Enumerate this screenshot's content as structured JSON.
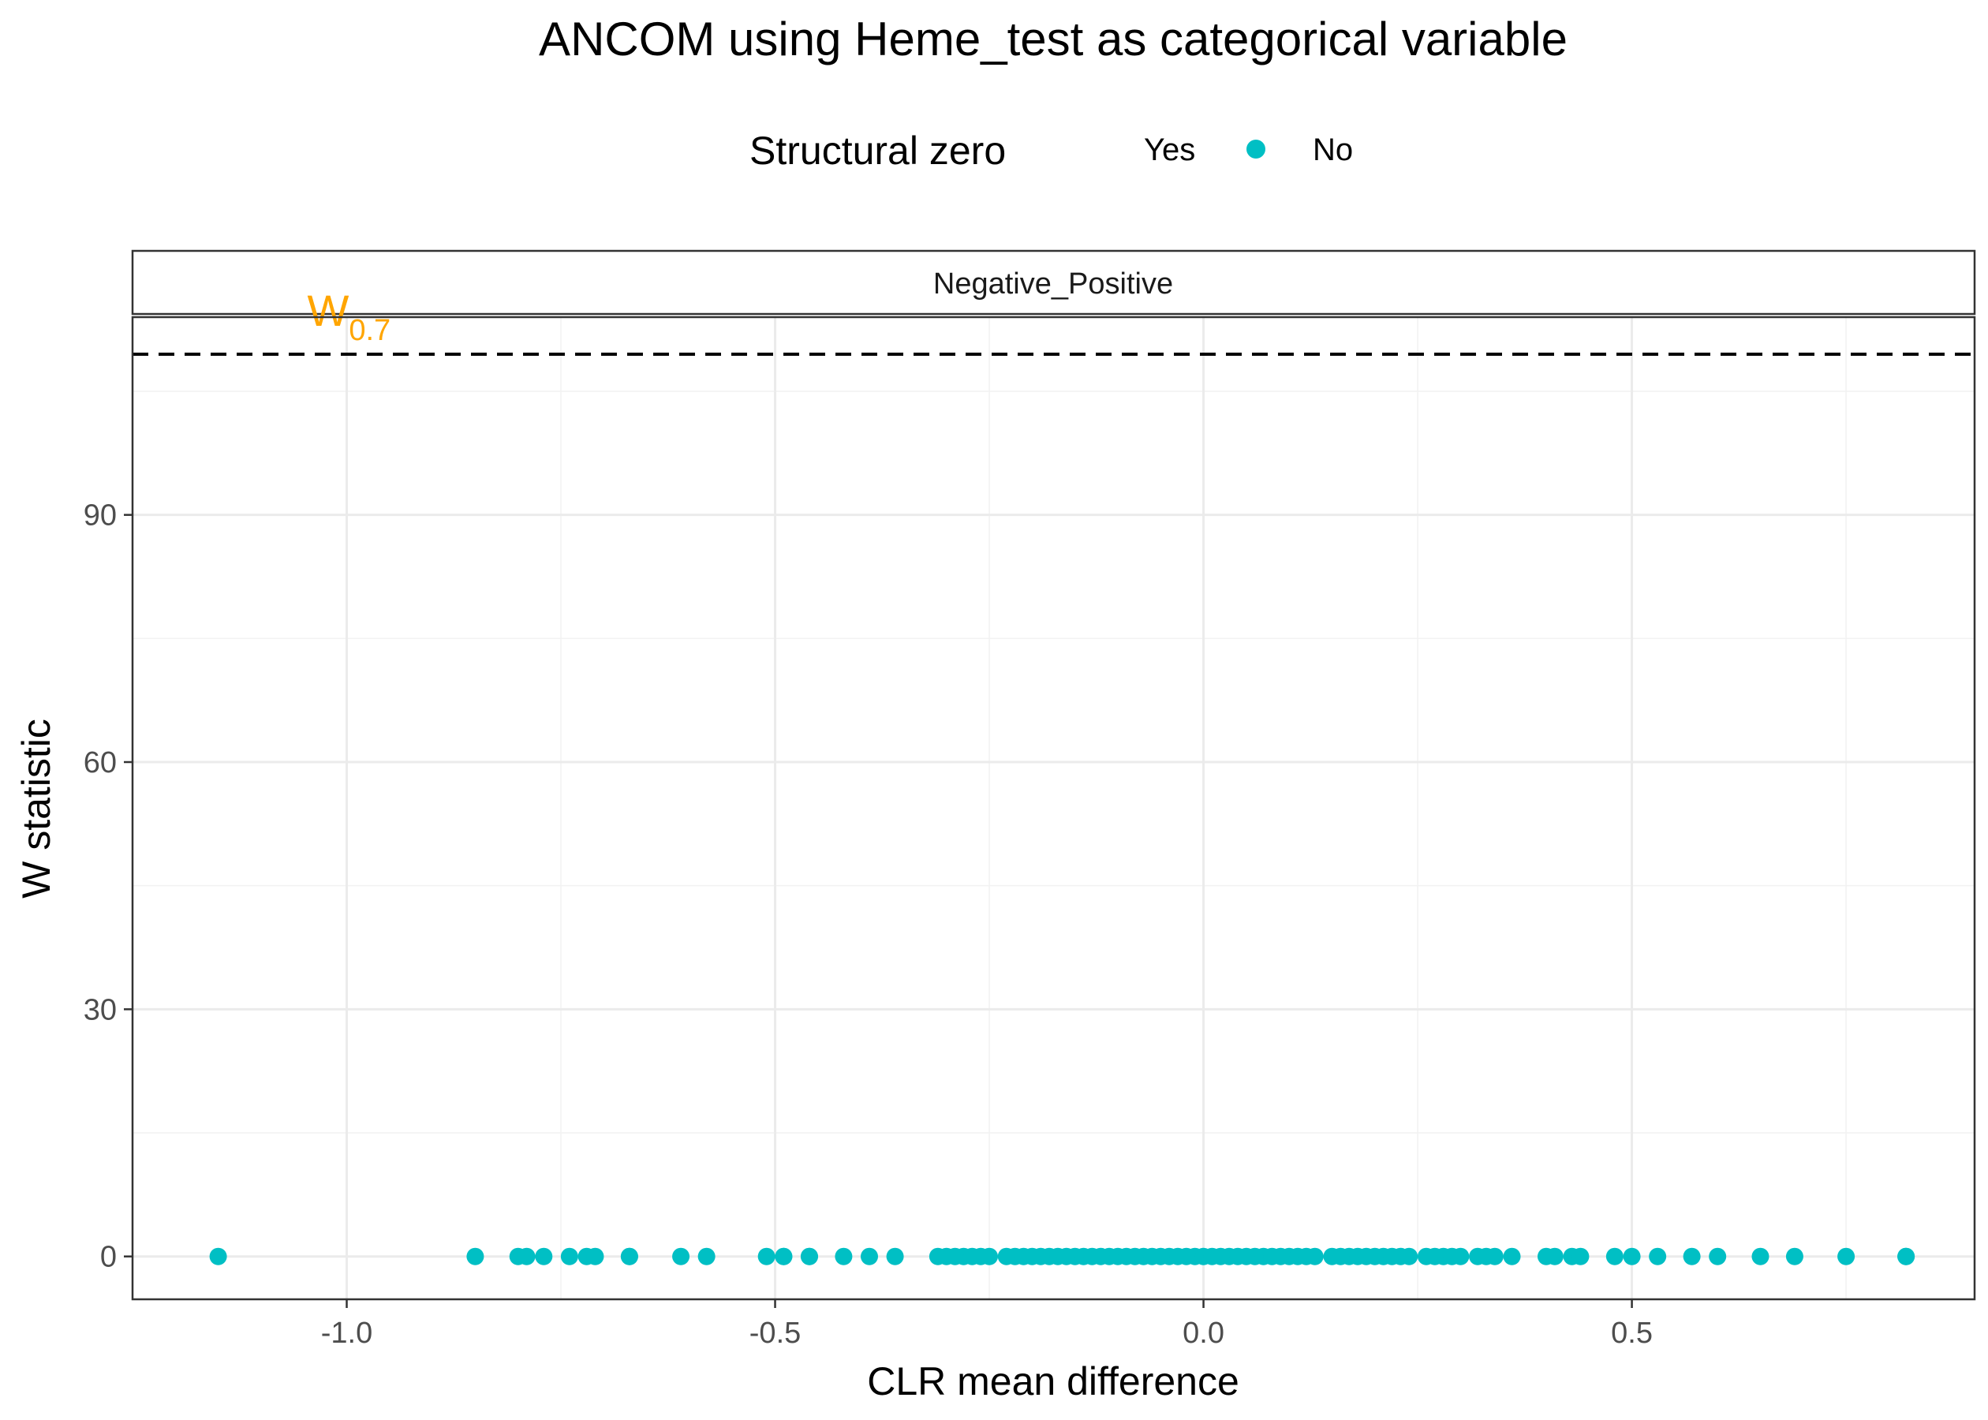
{
  "chart_data": {
    "type": "scatter",
    "title": "ANCOM using Heme_test as categorical variable",
    "xlabel": "CLR mean difference",
    "ylabel": "W statistic",
    "facet_label": "Negative_Positive",
    "legend": {
      "title": "Structural zero",
      "placement": "top",
      "entries": [
        {
          "label": "Yes",
          "color": ""
        },
        {
          "label": "No",
          "color": "#00BFC4"
        }
      ]
    },
    "xlim": [
      -1.25,
      0.9
    ],
    "ylim": [
      -5.2,
      114
    ],
    "x_ticks": [
      {
        "value": -1.0,
        "label": "-1.0"
      },
      {
        "value": -0.5,
        "label": "-0.5"
      },
      {
        "value": 0.0,
        "label": "0.0"
      },
      {
        "value": 0.5,
        "label": "0.5"
      }
    ],
    "y_ticks": [
      {
        "value": 0,
        "label": "0"
      },
      {
        "value": 30,
        "label": "30"
      },
      {
        "value": 60,
        "label": "60"
      },
      {
        "value": 90,
        "label": "90"
      }
    ],
    "grid": true,
    "threshold": {
      "value": 109.5,
      "label_main": "W",
      "label_sub": "0.7",
      "label_x": -1.0,
      "color": "#FFA500",
      "style": "dashed"
    },
    "point_color": "#00BFC4",
    "series": [
      {
        "name": "No",
        "x": [
          -1.15,
          -0.85,
          -0.8,
          -0.79,
          -0.77,
          -0.74,
          -0.72,
          -0.71,
          -0.67,
          -0.67,
          -0.61,
          -0.58,
          -0.51,
          -0.49,
          -0.49,
          -0.46,
          -0.46,
          -0.42,
          -0.39,
          -0.36,
          -0.31,
          -0.3,
          -0.29,
          -0.28,
          -0.27,
          -0.26,
          -0.25,
          -0.23,
          -0.22,
          -0.21,
          -0.2,
          -0.19,
          -0.18,
          -0.17,
          -0.16,
          -0.15,
          -0.14,
          -0.13,
          -0.12,
          -0.11,
          -0.1,
          -0.09,
          -0.08,
          -0.07,
          -0.06,
          -0.05,
          -0.04,
          -0.03,
          -0.02,
          -0.01,
          0.0,
          0.01,
          0.02,
          0.03,
          0.04,
          0.05,
          0.06,
          0.07,
          0.08,
          0.09,
          0.1,
          0.11,
          0.12,
          0.13,
          0.15,
          0.16,
          0.17,
          0.18,
          0.19,
          0.2,
          0.21,
          0.22,
          0.23,
          0.24,
          0.26,
          0.27,
          0.28,
          0.29,
          0.3,
          0.32,
          0.33,
          0.34,
          0.36,
          0.4,
          0.41,
          0.43,
          0.44,
          0.48,
          0.5,
          0.53,
          0.57,
          0.6,
          0.65,
          0.69,
          0.75,
          0.82,
          0.82
        ],
        "y": [
          0,
          0,
          0,
          0,
          0,
          0,
          0,
          0,
          0,
          0,
          0,
          0,
          0,
          0,
          0,
          0,
          0,
          0,
          0,
          0,
          0,
          0,
          0,
          0,
          0,
          0,
          0,
          0,
          0,
          0,
          0,
          0,
          0,
          0,
          0,
          0,
          0,
          0,
          0,
          0,
          0,
          0,
          0,
          0,
          0,
          0,
          0,
          0,
          0,
          0,
          0,
          0,
          0,
          0,
          0,
          0,
          0,
          0,
          0,
          0,
          0,
          0,
          0,
          0,
          0,
          0,
          0,
          0,
          0,
          0,
          0,
          0,
          0,
          0,
          0,
          0,
          0,
          0,
          0,
          0,
          0,
          0,
          0,
          0,
          0,
          0,
          0,
          0,
          0,
          0,
          0,
          0,
          0,
          0,
          0,
          0,
          0
        ]
      }
    ]
  }
}
